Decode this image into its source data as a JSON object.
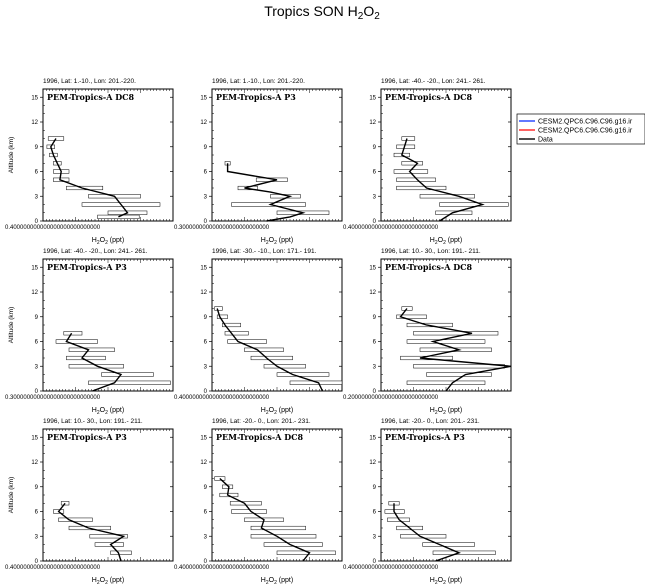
{
  "title": {
    "main": "Tropics SON H",
    "sub1": "2",
    "mid": "O",
    "sub2": "2"
  },
  "axis_labels": {
    "x_main": "H",
    "x_sub1": "2",
    "x_mid": "O",
    "x_sub2": "2",
    "x_units": " (ppt)",
    "y": "Altitude (km)"
  },
  "legend": {
    "entries": [
      {
        "label": "CESM2.QPC6.C96.C96.g16.ir",
        "color": "#1f3fff"
      },
      {
        "label": "CESM2.QPC6.C96.C96.g16.ir",
        "color": "#ff2020"
      },
      {
        "label": "Data",
        "color": "#000000"
      }
    ]
  },
  "chart_data": [
    {
      "type": "line",
      "title": "1996, Lat: 1.-10., Lon: 201.-220.",
      "inset": "PEM-Tropics-A DC8",
      "x_tick_label": "0.400000000000000000000000000",
      "ylim": [
        0,
        16
      ],
      "yticks": [
        0,
        3,
        6,
        9,
        12,
        15
      ],
      "xlim": [
        0,
        1
      ],
      "profile": [
        {
          "alt": 0.5,
          "val": 0.58
        },
        {
          "alt": 1.0,
          "val": 0.65
        },
        {
          "alt": 2.0,
          "val": 0.6
        },
        {
          "alt": 3.0,
          "val": 0.55
        },
        {
          "alt": 4.0,
          "val": 0.3
        },
        {
          "alt": 5.0,
          "val": 0.13
        },
        {
          "alt": 6.0,
          "val": 0.14
        },
        {
          "alt": 7.0,
          "val": 0.11
        },
        {
          "alt": 8.0,
          "val": 0.08
        },
        {
          "alt": 9.0,
          "val": 0.06
        },
        {
          "alt": 10.0,
          "val": 0.1
        }
      ],
      "bars": [
        {
          "alt": 0.5,
          "lo": 0.42,
          "hi": 0.74
        },
        {
          "alt": 1.0,
          "lo": 0.5,
          "hi": 0.8
        },
        {
          "alt": 2.0,
          "lo": 0.3,
          "hi": 0.9
        },
        {
          "alt": 3.0,
          "lo": 0.35,
          "hi": 0.75
        },
        {
          "alt": 4.0,
          "lo": 0.18,
          "hi": 0.46
        },
        {
          "alt": 5.0,
          "lo": 0.08,
          "hi": 0.2
        },
        {
          "alt": 6.0,
          "lo": 0.08,
          "hi": 0.2
        },
        {
          "alt": 7.0,
          "lo": 0.08,
          "hi": 0.14
        },
        {
          "alt": 8.0,
          "lo": 0.05,
          "hi": 0.11
        },
        {
          "alt": 9.0,
          "lo": 0.03,
          "hi": 0.09
        },
        {
          "alt": 10.0,
          "lo": 0.04,
          "hi": 0.16
        }
      ]
    },
    {
      "type": "line",
      "title": "1996, Lat: 1.-10., Lon: 201.-220.",
      "inset": "PEM-Tropics-A P3",
      "x_tick_label": "0.300000000000000000000000000",
      "ylim": [
        0,
        16
      ],
      "yticks": [
        0,
        3,
        6,
        9,
        12,
        15
      ],
      "xlim": [
        0,
        1
      ],
      "profile": [
        {
          "alt": 0.0,
          "val": 0.42
        },
        {
          "alt": 0.5,
          "val": 0.6
        },
        {
          "alt": 1.0,
          "val": 0.7
        },
        {
          "alt": 2.0,
          "val": 0.45
        },
        {
          "alt": 3.0,
          "val": 0.6
        },
        {
          "alt": 3.5,
          "val": 0.45
        },
        {
          "alt": 4.0,
          "val": 0.25
        },
        {
          "alt": 5.0,
          "val": 0.5
        },
        {
          "alt": 6.0,
          "val": 0.12
        },
        {
          "alt": 7.0,
          "val": 0.12
        }
      ],
      "bars": [
        {
          "alt": 1.0,
          "lo": 0.5,
          "hi": 0.9
        },
        {
          "alt": 2.0,
          "lo": 0.15,
          "hi": 0.72
        },
        {
          "alt": 3.0,
          "lo": 0.45,
          "hi": 0.68
        },
        {
          "alt": 4.0,
          "lo": 0.2,
          "hi": 0.35
        },
        {
          "alt": 5.0,
          "lo": 0.34,
          "hi": 0.58
        },
        {
          "alt": 7.0,
          "lo": 0.1,
          "hi": 0.14
        }
      ]
    },
    {
      "type": "line",
      "title": "1996, Lat: -40.- -20., Lon: 241.- 261.",
      "inset": "PEM-Tropics-A DC8",
      "x_tick_label": "0.400000000000000000000000000",
      "ylim": [
        0,
        16
      ],
      "yticks": [
        0,
        3,
        6,
        9,
        12,
        15
      ],
      "xlim": [
        0,
        1
      ],
      "profile": [
        {
          "alt": 0.0,
          "val": 0.45
        },
        {
          "alt": 1.0,
          "val": 0.55
        },
        {
          "alt": 2.0,
          "val": 0.78
        },
        {
          "alt": 3.0,
          "val": 0.6
        },
        {
          "alt": 4.0,
          "val": 0.35
        },
        {
          "alt": 5.0,
          "val": 0.28
        },
        {
          "alt": 6.0,
          "val": 0.22
        },
        {
          "alt": 7.0,
          "val": 0.28
        },
        {
          "alt": 8.0,
          "val": 0.16
        },
        {
          "alt": 9.0,
          "val": 0.18
        },
        {
          "alt": 10.0,
          "val": 0.2
        }
      ],
      "bars": [
        {
          "alt": 1.0,
          "lo": 0.42,
          "hi": 0.7
        },
        {
          "alt": 2.0,
          "lo": 0.45,
          "hi": 0.98
        },
        {
          "alt": 3.0,
          "lo": 0.3,
          "hi": 0.72
        },
        {
          "alt": 4.0,
          "lo": 0.12,
          "hi": 0.5
        },
        {
          "alt": 5.0,
          "lo": 0.12,
          "hi": 0.42
        },
        {
          "alt": 6.0,
          "lo": 0.1,
          "hi": 0.36
        },
        {
          "alt": 7.0,
          "lo": 0.16,
          "hi": 0.32
        },
        {
          "alt": 8.0,
          "lo": 0.1,
          "hi": 0.22
        },
        {
          "alt": 9.0,
          "lo": 0.12,
          "hi": 0.26
        },
        {
          "alt": 10.0,
          "lo": 0.16,
          "hi": 0.26
        }
      ]
    },
    {
      "type": "line",
      "title": "1996, Lat: -40.- -20., Lon: 241.- 261.",
      "inset": "PEM-Tropics-A P3",
      "x_tick_label": "0.300000000000000000000000000",
      "ylim": [
        0,
        16
      ],
      "yticks": [
        0,
        3,
        6,
        9,
        12,
        15
      ],
      "xlim": [
        0,
        1
      ],
      "profile": [
        {
          "alt": 0.0,
          "val": 0.38
        },
        {
          "alt": 1.0,
          "val": 0.55
        },
        {
          "alt": 2.0,
          "val": 0.6
        },
        {
          "alt": 3.0,
          "val": 0.42
        },
        {
          "alt": 4.0,
          "val": 0.3
        },
        {
          "alt": 5.0,
          "val": 0.35
        },
        {
          "alt": 6.0,
          "val": 0.18
        },
        {
          "alt": 7.0,
          "val": 0.22
        }
      ],
      "bars": [
        {
          "alt": 1.0,
          "lo": 0.35,
          "hi": 0.98
        },
        {
          "alt": 2.0,
          "lo": 0.45,
          "hi": 0.85
        },
        {
          "alt": 3.0,
          "lo": 0.2,
          "hi": 0.62
        },
        {
          "alt": 4.0,
          "lo": 0.18,
          "hi": 0.48
        },
        {
          "alt": 5.0,
          "lo": 0.2,
          "hi": 0.55
        },
        {
          "alt": 6.0,
          "lo": 0.1,
          "hi": 0.42
        },
        {
          "alt": 7.0,
          "lo": 0.16,
          "hi": 0.3
        }
      ]
    },
    {
      "type": "line",
      "title": "1996, Lat: -30.- -10., Lon: 171.- 191.",
      "inset": "",
      "x_tick_label": "0.400000000000000000000000000",
      "ylim": [
        0,
        16
      ],
      "yticks": [
        0,
        3,
        6,
        9,
        12,
        15
      ],
      "xlim": [
        0,
        1
      ],
      "profile": [
        {
          "alt": 0.0,
          "val": 0.85
        },
        {
          "alt": 1.0,
          "val": 0.82
        },
        {
          "alt": 2.0,
          "val": 0.62
        },
        {
          "alt": 3.0,
          "val": 0.5
        },
        {
          "alt": 4.0,
          "val": 0.42
        },
        {
          "alt": 5.0,
          "val": 0.35
        },
        {
          "alt": 6.0,
          "val": 0.2
        },
        {
          "alt": 7.0,
          "val": 0.15
        },
        {
          "alt": 8.0,
          "val": 0.1
        },
        {
          "alt": 9.0,
          "val": 0.06
        },
        {
          "alt": 10.0,
          "val": 0.04
        }
      ],
      "bars": [
        {
          "alt": 1.0,
          "lo": 0.6,
          "hi": 1.0
        },
        {
          "alt": 2.0,
          "lo": 0.5,
          "hi": 0.9
        },
        {
          "alt": 3.0,
          "lo": 0.4,
          "hi": 0.72
        },
        {
          "alt": 4.0,
          "lo": 0.3,
          "hi": 0.62
        },
        {
          "alt": 5.0,
          "lo": 0.25,
          "hi": 0.55
        },
        {
          "alt": 6.0,
          "lo": 0.12,
          "hi": 0.42
        },
        {
          "alt": 7.0,
          "lo": 0.1,
          "hi": 0.28
        },
        {
          "alt": 8.0,
          "lo": 0.08,
          "hi": 0.22
        },
        {
          "alt": 9.0,
          "lo": 0.04,
          "hi": 0.12
        },
        {
          "alt": 10.0,
          "lo": 0.02,
          "hi": 0.08
        }
      ]
    },
    {
      "type": "line",
      "title": "1996, Lat: 10.- 30., Lon: 191.- 211.",
      "inset": "PEM-Tropics-A DC8",
      "x_tick_label": "0.200000000000000000000000000",
      "ylim": [
        0,
        16
      ],
      "yticks": [
        0,
        3,
        6,
        9,
        12,
        15
      ],
      "xlim": [
        0,
        1
      ],
      "profile": [
        {
          "alt": 0.0,
          "val": 0.5
        },
        {
          "alt": 1.0,
          "val": 0.55
        },
        {
          "alt": 2.0,
          "val": 0.65
        },
        {
          "alt": 3.0,
          "val": 1.0
        },
        {
          "alt": 4.0,
          "val": 0.3
        },
        {
          "alt": 5.0,
          "val": 0.6
        },
        {
          "alt": 6.0,
          "val": 0.4
        },
        {
          "alt": 7.0,
          "val": 0.7
        },
        {
          "alt": 8.0,
          "val": 0.35
        },
        {
          "alt": 9.0,
          "val": 0.15
        },
        {
          "alt": 10.0,
          "val": 0.2
        }
      ],
      "bars": [
        {
          "alt": 1.0,
          "lo": 0.2,
          "hi": 0.8
        },
        {
          "alt": 2.0,
          "lo": 0.35,
          "hi": 0.85
        },
        {
          "alt": 3.0,
          "lo": 0.25,
          "hi": 0.95
        },
        {
          "alt": 4.0,
          "lo": 0.15,
          "hi": 0.55
        },
        {
          "alt": 5.0,
          "lo": 0.3,
          "hi": 0.85
        },
        {
          "alt": 6.0,
          "lo": 0.2,
          "hi": 0.8
        },
        {
          "alt": 7.0,
          "lo": 0.25,
          "hi": 0.9
        },
        {
          "alt": 8.0,
          "lo": 0.2,
          "hi": 0.55
        },
        {
          "alt": 9.0,
          "lo": 0.12,
          "hi": 0.35
        },
        {
          "alt": 10.0,
          "lo": 0.16,
          "hi": 0.24
        }
      ]
    },
    {
      "type": "line",
      "title": "1996, Lat: 10.- 30., Lon: 191.- 211.",
      "inset": "PEM-Tropics-A P3",
      "x_tick_label": "0.400000000000000000000000000",
      "ylim": [
        0,
        16
      ],
      "yticks": [
        0,
        3,
        6,
        9,
        12,
        15
      ],
      "xlim": [
        0,
        1
      ],
      "profile": [
        {
          "alt": 0.0,
          "val": 0.6
        },
        {
          "alt": 1.0,
          "val": 0.58
        },
        {
          "alt": 2.0,
          "val": 0.52
        },
        {
          "alt": 3.0,
          "val": 0.62
        },
        {
          "alt": 4.0,
          "val": 0.35
        },
        {
          "alt": 5.0,
          "val": 0.2
        },
        {
          "alt": 6.0,
          "val": 0.12
        },
        {
          "alt": 7.0,
          "val": 0.17
        }
      ],
      "bars": [
        {
          "alt": 1.0,
          "lo": 0.52,
          "hi": 0.68
        },
        {
          "alt": 2.0,
          "lo": 0.4,
          "hi": 0.62
        },
        {
          "alt": 3.0,
          "lo": 0.36,
          "hi": 0.65
        },
        {
          "alt": 4.0,
          "lo": 0.2,
          "hi": 0.52
        },
        {
          "alt": 5.0,
          "lo": 0.12,
          "hi": 0.38
        },
        {
          "alt": 6.0,
          "lo": 0.08,
          "hi": 0.16
        },
        {
          "alt": 7.0,
          "lo": 0.14,
          "hi": 0.2
        }
      ]
    },
    {
      "type": "line",
      "title": "1996, Lat: -20.- 0., Lon: 201.- 231.",
      "inset": "PEM-Tropics-A DC8",
      "x_tick_label": "0.400000000000000000000000000",
      "ylim": [
        0,
        16
      ],
      "yticks": [
        0,
        3,
        6,
        9,
        12,
        15
      ],
      "xlim": [
        0,
        1
      ],
      "profile": [
        {
          "alt": 0.0,
          "val": 0.7
        },
        {
          "alt": 1.0,
          "val": 0.75
        },
        {
          "alt": 2.0,
          "val": 0.6
        },
        {
          "alt": 3.0,
          "val": 0.5
        },
        {
          "alt": 4.0,
          "val": 0.38
        },
        {
          "alt": 5.0,
          "val": 0.4
        },
        {
          "alt": 6.0,
          "val": 0.3
        },
        {
          "alt": 7.0,
          "val": 0.25
        },
        {
          "alt": 8.0,
          "val": 0.12
        },
        {
          "alt": 9.0,
          "val": 0.13
        },
        {
          "alt": 10.0,
          "val": 0.06
        }
      ],
      "bars": [
        {
          "alt": 1.0,
          "lo": 0.5,
          "hi": 0.95
        },
        {
          "alt": 2.0,
          "lo": 0.4,
          "hi": 0.85
        },
        {
          "alt": 3.0,
          "lo": 0.3,
          "hi": 0.8
        },
        {
          "alt": 4.0,
          "lo": 0.3,
          "hi": 0.72
        },
        {
          "alt": 5.0,
          "lo": 0.25,
          "hi": 0.55
        },
        {
          "alt": 6.0,
          "lo": 0.15,
          "hi": 0.42
        },
        {
          "alt": 7.0,
          "lo": 0.14,
          "hi": 0.38
        },
        {
          "alt": 8.0,
          "lo": 0.06,
          "hi": 0.2
        },
        {
          "alt": 9.0,
          "lo": 0.08,
          "hi": 0.16
        },
        {
          "alt": 10.0,
          "lo": 0.02,
          "hi": 0.1
        }
      ]
    },
    {
      "type": "line",
      "title": "1996, Lat: -20.- 0., Lon: 201.- 231.",
      "inset": "PEM-Tropics-A P3",
      "x_tick_label": "0.400000000000000000000000000",
      "ylim": [
        0,
        16
      ],
      "yticks": [
        0,
        3,
        6,
        9,
        12,
        15
      ],
      "xlim": [
        0,
        1
      ],
      "profile": [
        {
          "alt": 0.0,
          "val": 0.42
        },
        {
          "alt": 1.0,
          "val": 0.6
        },
        {
          "alt": 2.0,
          "val": 0.45
        },
        {
          "alt": 3.0,
          "val": 0.3
        },
        {
          "alt": 4.0,
          "val": 0.22
        },
        {
          "alt": 5.0,
          "val": 0.14
        },
        {
          "alt": 6.0,
          "val": 0.1
        },
        {
          "alt": 7.0,
          "val": 0.1
        }
      ],
      "bars": [
        {
          "alt": 1.0,
          "lo": 0.4,
          "hi": 0.88
        },
        {
          "alt": 2.0,
          "lo": 0.32,
          "hi": 0.72
        },
        {
          "alt": 3.0,
          "lo": 0.15,
          "hi": 0.5
        },
        {
          "alt": 4.0,
          "lo": 0.12,
          "hi": 0.32
        },
        {
          "alt": 5.0,
          "lo": 0.05,
          "hi": 0.22
        },
        {
          "alt": 6.0,
          "lo": 0.03,
          "hi": 0.18
        },
        {
          "alt": 7.0,
          "lo": 0.06,
          "hi": 0.14
        }
      ]
    }
  ]
}
